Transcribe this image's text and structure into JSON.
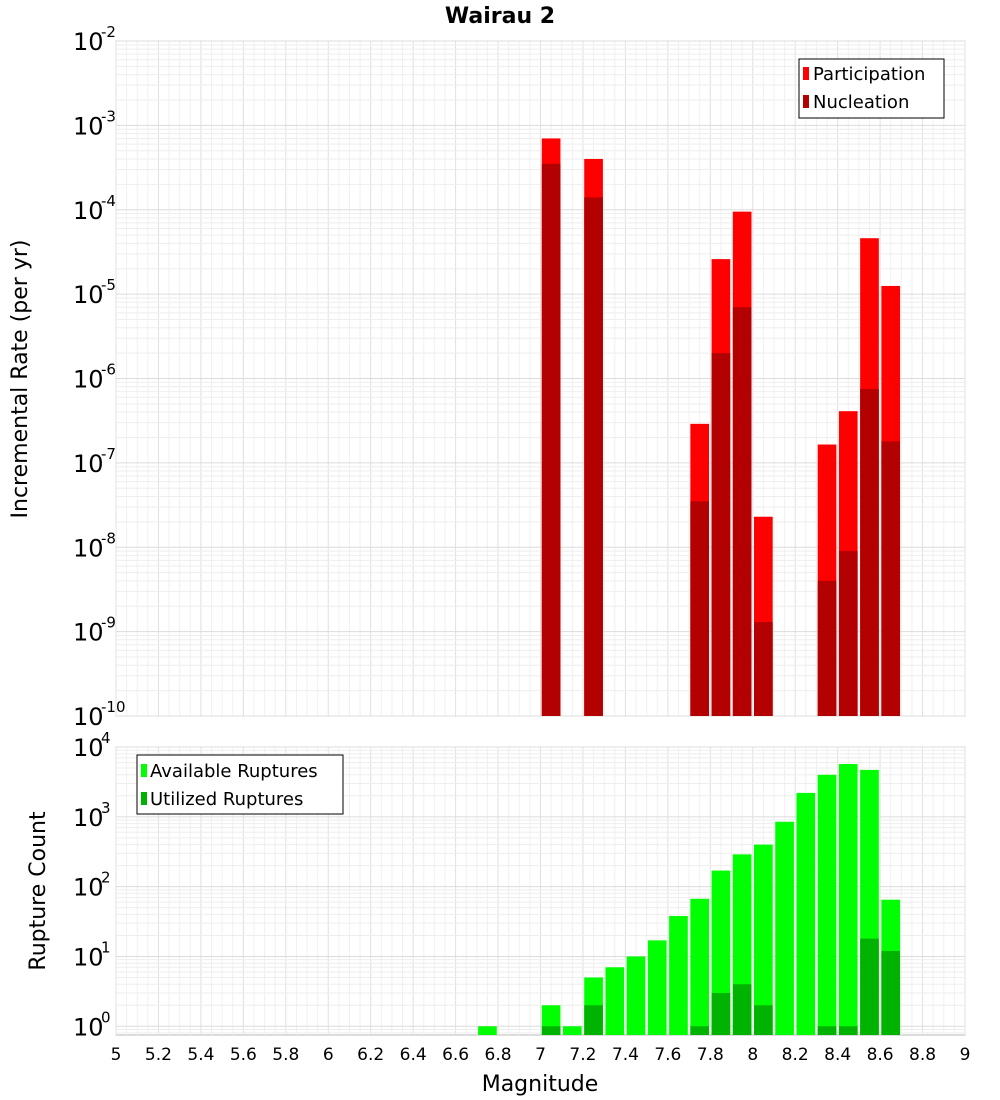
{
  "chart_data": [
    {
      "type": "bar",
      "title": "Wairau 2",
      "xlabel": "",
      "ylabel": "Incremental Rate (per yr)",
      "yscale": "log",
      "ylim": [
        1e-10,
        0.01
      ],
      "xlim": [
        5,
        9
      ],
      "y_ticks": [
        {
          "base": "10",
          "exp": "-10"
        },
        {
          "base": "10",
          "exp": "-9"
        },
        {
          "base": "10",
          "exp": "-8"
        },
        {
          "base": "10",
          "exp": "-7"
        },
        {
          "base": "10",
          "exp": "-6"
        },
        {
          "base": "10",
          "exp": "-5"
        },
        {
          "base": "10",
          "exp": "-4"
        },
        {
          "base": "10",
          "exp": "-3"
        },
        {
          "base": "10",
          "exp": "-2"
        }
      ],
      "grid": true,
      "legend_position": "top-right",
      "series": [
        {
          "name": "Participation",
          "color": "#ff0000",
          "x": [
            7.05,
            7.25,
            7.75,
            7.85,
            7.95,
            8.05,
            8.35,
            8.45,
            8.55,
            8.65
          ],
          "values": [
            0.0007,
            0.0004,
            2.9e-07,
            2.6e-05,
            9.5e-05,
            2.3e-08,
            1.65e-07,
            4.1e-07,
            4.6e-05,
            1.25e-05
          ]
        },
        {
          "name": "Nucleation",
          "color": "#b30000",
          "x": [
            7.05,
            7.25,
            7.75,
            7.85,
            7.95,
            8.05,
            8.35,
            8.45,
            8.55,
            8.65
          ],
          "values": [
            0.00035,
            0.00014,
            3.5e-08,
            2e-06,
            7e-06,
            1.3e-09,
            4e-09,
            9e-09,
            7.5e-07,
            1.8e-07
          ]
        }
      ]
    },
    {
      "type": "bar",
      "title": "",
      "xlabel": "Magnitude",
      "ylabel": "Rupture Count",
      "yscale": "log",
      "ylim": [
        0.75,
        10000
      ],
      "xlim": [
        5,
        9
      ],
      "x_ticks": [
        "5",
        "5.2",
        "5.4",
        "5.6",
        "5.8",
        "6",
        "6.2",
        "6.4",
        "6.6",
        "6.8",
        "7",
        "7.2",
        "7.4",
        "7.6",
        "7.8",
        "8",
        "8.2",
        "8.4",
        "8.6",
        "8.8",
        "9"
      ],
      "y_ticks": [
        {
          "base": "10",
          "exp": "0"
        },
        {
          "base": "10",
          "exp": "1"
        },
        {
          "base": "10",
          "exp": "2"
        },
        {
          "base": "10",
          "exp": "3"
        },
        {
          "base": "10",
          "exp": "4"
        }
      ],
      "grid": true,
      "legend_position": "top-left",
      "series": [
        {
          "name": "Available Ruptures",
          "color": "#00ff00",
          "x": [
            6.75,
            7.05,
            7.15,
            7.25,
            7.35,
            7.45,
            7.55,
            7.65,
            7.75,
            7.85,
            7.95,
            8.05,
            8.15,
            8.25,
            8.35,
            8.45,
            8.55,
            8.65
          ],
          "values": [
            1,
            2,
            1,
            5,
            7,
            10,
            17,
            38,
            67,
            170,
            290,
            400,
            850,
            2200,
            4000,
            5700,
            4700,
            65
          ]
        },
        {
          "name": "Utilized Ruptures",
          "color": "#00b300",
          "x": [
            7.05,
            7.25,
            7.75,
            7.85,
            7.95,
            8.05,
            8.35,
            8.45,
            8.55,
            8.65
          ],
          "values": [
            1,
            2,
            1,
            3,
            4,
            2,
            1,
            1,
            18,
            12
          ]
        }
      ]
    }
  ]
}
